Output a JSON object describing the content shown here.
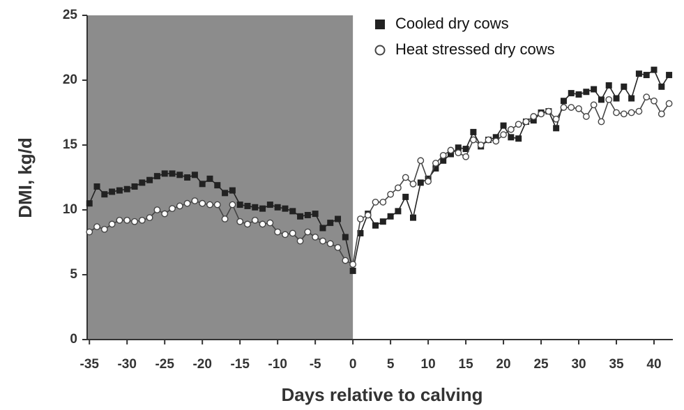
{
  "chart_data": {
    "type": "line",
    "y_label": "DMI, kg/d",
    "x_label": "Days relative to calving",
    "x": [
      -35,
      -34,
      -33,
      -32,
      -31,
      -30,
      -29,
      -28,
      -27,
      -26,
      -25,
      -24,
      -23,
      -22,
      -21,
      -20,
      -19,
      -18,
      -17,
      -16,
      -15,
      -14,
      -13,
      -12,
      -11,
      -10,
      -9,
      -8,
      -7,
      -6,
      -5,
      -4,
      -3,
      -2,
      -1,
      0,
      1,
      2,
      3,
      4,
      5,
      6,
      7,
      8,
      9,
      10,
      11,
      12,
      13,
      14,
      15,
      16,
      17,
      18,
      19,
      20,
      21,
      22,
      23,
      24,
      25,
      26,
      27,
      28,
      29,
      30,
      31,
      32,
      33,
      34,
      35,
      36,
      37,
      38,
      39,
      40,
      41,
      42
    ],
    "series": [
      {
        "name": "Cooled dry cows",
        "color": "#222222",
        "marker": "square",
        "values": [
          10.5,
          11.8,
          11.2,
          11.4,
          11.5,
          11.6,
          11.8,
          12.1,
          12.3,
          12.6,
          12.8,
          12.8,
          12.7,
          12.5,
          12.7,
          12.0,
          12.4,
          11.9,
          11.3,
          11.5,
          10.4,
          10.3,
          10.2,
          10.1,
          10.4,
          10.2,
          10.1,
          9.9,
          9.5,
          9.6,
          9.7,
          8.6,
          9.0,
          9.3,
          7.9,
          5.3,
          8.2,
          9.7,
          8.8,
          9.1,
          9.5,
          9.9,
          11.0,
          9.4,
          12.1,
          12.4,
          13.2,
          13.8,
          14.3,
          14.8,
          14.7,
          16.0,
          14.9,
          15.4,
          15.6,
          16.5,
          15.6,
          15.5,
          16.8,
          16.9,
          17.5,
          17.6,
          16.3,
          18.4,
          19.0,
          18.9,
          19.1,
          19.3,
          18.5,
          19.6,
          18.6,
          19.5,
          18.6,
          20.5,
          20.4,
          20.8,
          19.5,
          20.4
        ]
      },
      {
        "name": "Heat stressed dry cows",
        "color": "#444444",
        "marker": "circle",
        "values": [
          8.3,
          8.7,
          8.5,
          8.9,
          9.2,
          9.2,
          9.1,
          9.2,
          9.4,
          10.0,
          9.7,
          10.1,
          10.3,
          10.5,
          10.7,
          10.5,
          10.4,
          10.4,
          9.3,
          10.4,
          9.1,
          8.9,
          9.2,
          8.9,
          9.0,
          8.3,
          8.1,
          8.2,
          7.6,
          8.3,
          7.9,
          7.6,
          7.4,
          7.1,
          6.1,
          5.8,
          9.3,
          9.6,
          10.6,
          10.6,
          11.2,
          11.7,
          12.5,
          12.0,
          13.8,
          12.2,
          13.6,
          14.2,
          14.6,
          14.4,
          14.1,
          15.4,
          15.0,
          15.4,
          15.3,
          15.8,
          16.2,
          16.6,
          16.8,
          17.2,
          17.4,
          17.6,
          17.0,
          17.9,
          17.9,
          17.8,
          17.2,
          18.1,
          16.8,
          18.5,
          17.5,
          17.4,
          17.5,
          17.6,
          18.7,
          18.4,
          17.4,
          18.2
        ]
      }
    ],
    "xlim": [
      -35.3,
      42.5
    ],
    "ylim": [
      0,
      25
    ],
    "xticks": [
      -35,
      -30,
      -25,
      -20,
      -15,
      -10,
      -5,
      0,
      5,
      10,
      15,
      20,
      25,
      30,
      35,
      40
    ],
    "yticks": [
      0,
      5,
      10,
      15,
      20,
      25
    ],
    "shaded_range": [
      -35.3,
      0
    ],
    "shade_color": "#8c8c8c",
    "legend": "upper center"
  }
}
